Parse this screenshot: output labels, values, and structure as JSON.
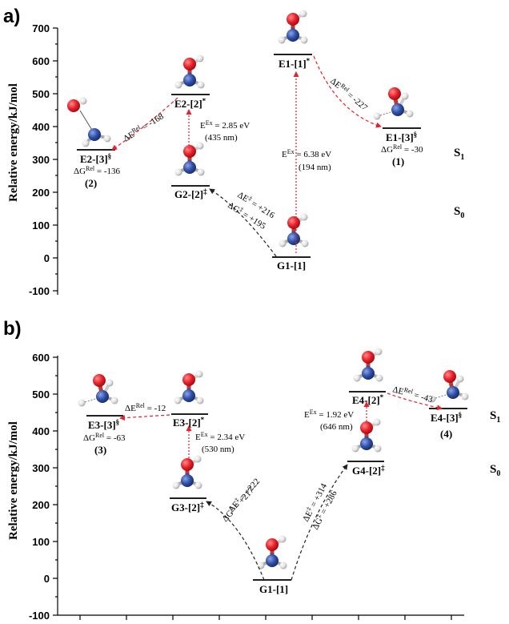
{
  "colors": {
    "oxygen": "#e8202a",
    "nitrogen": "#2f4fa8",
    "hydrogen": "#e6e6e6",
    "arrow_red": "#e8202a",
    "arrow_black": "#222222"
  },
  "panel_a": {
    "label": "a)",
    "ylabel": "Relative energy/kJ/mol",
    "ticks": [
      "700",
      "600",
      "500",
      "400",
      "300",
      "200",
      "100",
      "0",
      "-100"
    ],
    "state_s1": "S",
    "state_s1_sub": "1",
    "state_s0": "S",
    "state_s0_sub": "0",
    "levels": {
      "g1": "G1-[1]",
      "e1_1star": "E1-[1]",
      "e1_1star_sup": "*",
      "e1_3": "E1-[3]",
      "e1_3_sup": "§",
      "g2": "G2-[2]",
      "g2_sup": "‡",
      "e2_2": "E2-[2]",
      "e2_2_sup": "*",
      "e2_3": "E2-[3]",
      "e2_3_sup": "§"
    },
    "annotations": {
      "dg_e1_3": "ΔG",
      "dg_e1_3_sup": "Rel",
      "dg_e1_3_val": " = -30",
      "num_1": "(1)",
      "dg_e2_3": "ΔG",
      "dg_e2_3_sup": "Rel",
      "dg_e2_3_val": " = -136",
      "num_2": "(2)",
      "dE_e2": "ΔE",
      "dE_e2_sup": "Rel",
      "dE_e2_val": " = -168",
      "dE_e1": "ΔE",
      "dE_e1_sup": "Rel",
      "dE_e1_val": " = -227",
      "ex_e1": "E",
      "ex_e1_sup": "Ex",
      "ex_e1_val": " = 6.38 eV",
      "ex_e1_nm": "(194 nm)",
      "ex_e2": "E",
      "ex_e2_sup": "Ex",
      "ex_e2_val": " = 2.85 eV",
      "ex_e2_nm": "(435 nm)",
      "ts_dE": "ΔE",
      "ts_dE_sup": "‡",
      "ts_dE_val": " = +216",
      "ts_dG": "ΔG",
      "ts_dG_sup": "‡",
      "ts_dG_val": " = +195"
    }
  },
  "panel_b": {
    "label": "b)",
    "ylabel": "Relative energy/kJ/mol",
    "ticks": [
      "600",
      "500",
      "400",
      "300",
      "200",
      "100",
      "0",
      "-100"
    ],
    "state_s1": "S",
    "state_s1_sub": "1",
    "state_s0": "S",
    "state_s0_sub": "0",
    "levels": {
      "g1": "G1-[1]",
      "g3": "G3-[2]",
      "g3_sup": "‡",
      "e3_2": "E3-[2]",
      "e3_2_sup": "*",
      "e3_3": "E3-[3]",
      "e3_3_sup": "§",
      "g4": "G4-[2]",
      "g4_sup": "‡",
      "e4_2": "E4-[2]",
      "e4_2_sup": "*",
      "e4_3": "E4-[3]",
      "e4_3_sup": "§"
    },
    "annotations": {
      "dE_e3": "ΔE",
      "dE_e3_sup": "Rel",
      "dE_e3_val": " = -12",
      "dg_e3_3": "ΔG",
      "dg_e3_3_sup": "Rel",
      "dg_e3_3_val": " = -63",
      "num_3": "(3)",
      "ex_e3": "E",
      "ex_e3_sup": "Ex",
      "ex_e3_val": " = 2.34 eV",
      "ex_e3_nm": "(530 nm)",
      "ts3_dE": "ΔE",
      "ts3_dE_sup": "‡",
      "ts3_dE_val": " = +222",
      "ts3_dG": "ΔG",
      "ts3_dG_sup": "‡",
      "ts3_dG_val": " = +217",
      "ts4_dE": "ΔE",
      "ts4_dE_sup": "‡",
      "ts4_dE_val": " = +314",
      "ts4_dG": "ΔG",
      "ts4_dG_sup": "‡",
      "ts4_dG_val": " = +286",
      "ex_e4": "E",
      "ex_e4_sup": "Ex",
      "ex_e4_val": " = 1.92 eV",
      "ex_e4_nm": "(646 nm)",
      "dE_e4": "ΔE",
      "dE_e4_sup": "Rel",
      "dE_e4_val": " = -43",
      "num_4": "(4)"
    }
  }
}
